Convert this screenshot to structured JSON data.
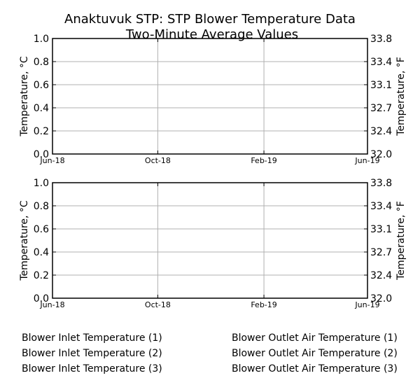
{
  "chart_data": {
    "type": "line",
    "title": [
      "Anaktuvuk STP: STP Blower Temperature Data",
      "Two-Minute Average Values"
    ],
    "panels": [
      {
        "ylabel_left": "Temperature, °C",
        "ylabel_right": "Temperature, °F",
        "ylim": [
          0.0,
          1.0
        ],
        "y_ticks": [
          0.0,
          0.2,
          0.4,
          0.6,
          0.8,
          1.0
        ],
        "y_tick_labels": [
          "0.0",
          "0.2",
          "0.4",
          "0.6",
          "0.8",
          "1.0"
        ],
        "y_right_ticks": [
          "32.0",
          "32.4",
          "32.7",
          "33.1",
          "33.4",
          "33.8"
        ],
        "x_range": [
          "2018-06-01",
          "2019-06-01"
        ],
        "x_ticks": [
          "2018-06-01",
          "2018-10-01",
          "2019-02-01",
          "2019-06-01"
        ],
        "x_tick_labels": [
          "Jun-18",
          "Oct-18",
          "Feb-19",
          "Jun-19"
        ],
        "grid": true,
        "series": [
          {
            "name": "Blower Inlet Temperature (1)",
            "values": []
          },
          {
            "name": "Blower Inlet Temperature (2)",
            "values": []
          },
          {
            "name": "Blower Inlet Temperature (3)",
            "values": []
          }
        ]
      },
      {
        "ylabel_left": "Temperature, °C",
        "ylabel_right": "Temperature, °F",
        "ylim": [
          0.0,
          1.0
        ],
        "y_ticks": [
          0.0,
          0.2,
          0.4,
          0.6,
          0.8,
          1.0
        ],
        "y_tick_labels": [
          "0.0",
          "0.2",
          "0.4",
          "0.6",
          "0.8",
          "1.0"
        ],
        "y_right_ticks": [
          "32.0",
          "32.4",
          "32.7",
          "33.1",
          "33.4",
          "33.8"
        ],
        "x_range": [
          "2018-06-01",
          "2019-06-01"
        ],
        "x_ticks": [
          "2018-06-01",
          "2018-10-01",
          "2019-02-01",
          "2019-06-01"
        ],
        "x_tick_labels": [
          "Jun-18",
          "Oct-18",
          "Feb-19",
          "Jun-19"
        ],
        "grid": true,
        "series": [
          {
            "name": "Blower Outlet Air Temperature (1)",
            "values": []
          },
          {
            "name": "Blower Outlet Air Temperature (2)",
            "values": []
          },
          {
            "name": "Blower Outlet Air Temperature (3)",
            "values": []
          }
        ]
      }
    ],
    "legend": {
      "left": [
        "Blower Inlet Temperature (1)",
        "Blower Inlet Temperature (2)",
        "Blower Inlet Temperature (3)"
      ],
      "right": [
        "Blower Outlet Air Temperature (1)",
        "Blower Outlet Air Temperature (2)",
        "Blower Outlet Air Temperature (3)"
      ],
      "placement": "below"
    }
  }
}
